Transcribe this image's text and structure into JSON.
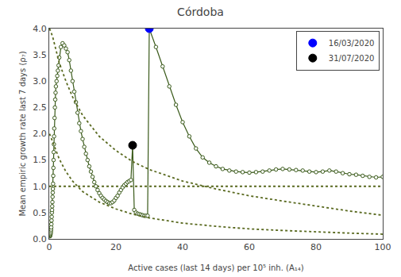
{
  "chart_data": {
    "type": "line",
    "title": "Córdoba",
    "x_label": "Active cases (last 14 days) per 10⁵ inh. (A₁₄)",
    "y_label": "Mean empiric growth rate last 7 days (ρ₇)",
    "xlim": [
      0,
      100
    ],
    "ylim": [
      0,
      4
    ],
    "xticks": [
      0,
      20,
      40,
      60,
      80,
      100
    ],
    "yticks": [
      {
        "value": 0,
        "label": "0.0"
      },
      0.5,
      {
        "value": 1,
        "label": "1.0"
      },
      1.5,
      {
        "value": 2,
        "label": "2.0"
      },
      2.5,
      {
        "value": 3,
        "label": "3.0"
      },
      3.5,
      {
        "value": 4,
        "label": "4.0"
      }
    ],
    "grid": false,
    "legend": "upper right",
    "hline": {
      "y": 1.0,
      "color": "#5a6a20",
      "line_style": "dotted"
    },
    "series": [
      {
        "color": "#3a5a1a",
        "marker": "hollow circle",
        "line_style": "solid",
        "x": [
          0.2,
          0.25,
          0.3,
          0.35,
          0.4,
          0.45,
          0.5,
          0.55,
          0.6,
          0.65,
          0.7,
          0.75,
          0.8,
          0.85,
          0.9,
          0.95,
          1.0,
          1.05,
          1.1,
          1.15,
          1.2,
          1.25,
          1.3,
          1.35,
          1.4,
          1.45,
          1.5,
          1.6,
          1.7,
          1.8,
          1.9,
          2.0,
          2.2,
          2.4,
          2.6,
          2.8,
          3.0,
          3.5,
          4.0,
          4.5,
          5.0,
          5.5,
          6.0,
          6.5,
          7.0,
          7.5,
          8.0,
          8.5,
          9.0,
          9.5,
          10.0,
          10.5,
          11.0,
          11.5,
          12.0,
          12.5,
          13.0,
          13.5,
          14.0,
          14.5,
          15.0,
          15.5,
          16.0,
          16.5,
          17.0,
          17.5,
          18.0,
          18.5,
          19.0,
          19.5,
          20.0,
          20.5,
          21.0,
          21.5,
          22.0,
          22.5,
          23.0,
          23.5,
          24.0,
          24.5,
          25.0,
          25.5,
          26.0,
          26.5,
          27.0,
          27.5,
          28.0,
          28.5,
          29.0,
          29.5,
          30.0,
          32.0,
          34.0,
          36.0,
          38.0,
          40.0,
          42.0,
          44.0,
          46.0,
          48.0,
          50.0,
          52.0,
          54.0,
          56.0,
          58.0,
          60.0,
          62.0,
          64.0,
          66.0,
          68.0,
          70.0,
          72.0,
          74.0,
          76.0,
          78.0,
          80.0,
          82.0,
          84.0,
          86.0,
          88.0,
          90.0,
          92.0,
          94.0,
          96.0,
          98.0,
          100.0
        ],
        "values": [
          0.05,
          0.06,
          0.07,
          0.08,
          0.1,
          0.12,
          0.15,
          0.18,
          0.22,
          0.28,
          0.35,
          0.42,
          0.5,
          0.55,
          0.62,
          0.7,
          0.8,
          0.88,
          0.95,
          1.05,
          1.2,
          1.35,
          1.5,
          1.65,
          1.8,
          1.95,
          2.1,
          2.3,
          2.5,
          2.65,
          2.78,
          2.9,
          3.0,
          3.1,
          3.2,
          3.3,
          3.45,
          3.65,
          3.72,
          3.68,
          3.62,
          3.55,
          3.4,
          3.2,
          3.0,
          2.8,
          2.6,
          2.4,
          2.2,
          2.05,
          1.9,
          1.75,
          1.62,
          1.5,
          1.38,
          1.28,
          1.18,
          1.08,
          1.0,
          0.93,
          0.87,
          0.82,
          0.78,
          0.75,
          0.72,
          0.7,
          0.68,
          0.68,
          0.7,
          0.73,
          0.78,
          0.82,
          0.88,
          0.93,
          0.98,
          1.02,
          1.05,
          1.08,
          1.1,
          1.12,
          1.78,
          0.55,
          0.5,
          0.48,
          0.47,
          0.46,
          0.45,
          0.44,
          0.44,
          0.44,
          4.0,
          3.65,
          3.28,
          2.9,
          2.55,
          2.22,
          1.95,
          1.72,
          1.55,
          1.45,
          1.38,
          1.33,
          1.3,
          1.28,
          1.27,
          1.26,
          1.27,
          1.28,
          1.3,
          1.32,
          1.33,
          1.32,
          1.31,
          1.3,
          1.28,
          1.27,
          1.28,
          1.3,
          1.28,
          1.25,
          1.23,
          1.22,
          1.2,
          1.18,
          1.17,
          1.18
        ]
      },
      {
        "color": "#5a6a20",
        "line_style": "dotted",
        "x": [
          0.1,
          1,
          2,
          3,
          5,
          7,
          10,
          15,
          20,
          25,
          30,
          40,
          50,
          60,
          70,
          80,
          90,
          100
        ],
        "values": [
          4.0,
          3.85,
          3.6,
          3.35,
          3.0,
          2.7,
          2.35,
          1.95,
          1.68,
          1.47,
          1.32,
          1.1,
          0.95,
          0.82,
          0.72,
          0.62,
          0.53,
          0.45
        ]
      },
      {
        "color": "#5a6a20",
        "line_style": "dotted",
        "x": [
          0.1,
          1,
          2,
          3,
          5,
          7,
          10,
          15,
          20,
          25,
          30,
          40,
          50,
          60,
          70,
          80,
          90,
          100
        ],
        "values": [
          2.0,
          1.85,
          1.68,
          1.52,
          1.28,
          1.1,
          0.9,
          0.7,
          0.57,
          0.47,
          0.4,
          0.3,
          0.24,
          0.19,
          0.16,
          0.13,
          0.11,
          0.09
        ]
      },
      {
        "name": "16/03/2020",
        "color": "blue",
        "marker": "circle",
        "x": [
          30
        ],
        "values": [
          4.0
        ]
      },
      {
        "name": "31/07/2020",
        "color": "black",
        "marker": "circle",
        "x": [
          25
        ],
        "values": [
          1.78
        ]
      }
    ]
  }
}
